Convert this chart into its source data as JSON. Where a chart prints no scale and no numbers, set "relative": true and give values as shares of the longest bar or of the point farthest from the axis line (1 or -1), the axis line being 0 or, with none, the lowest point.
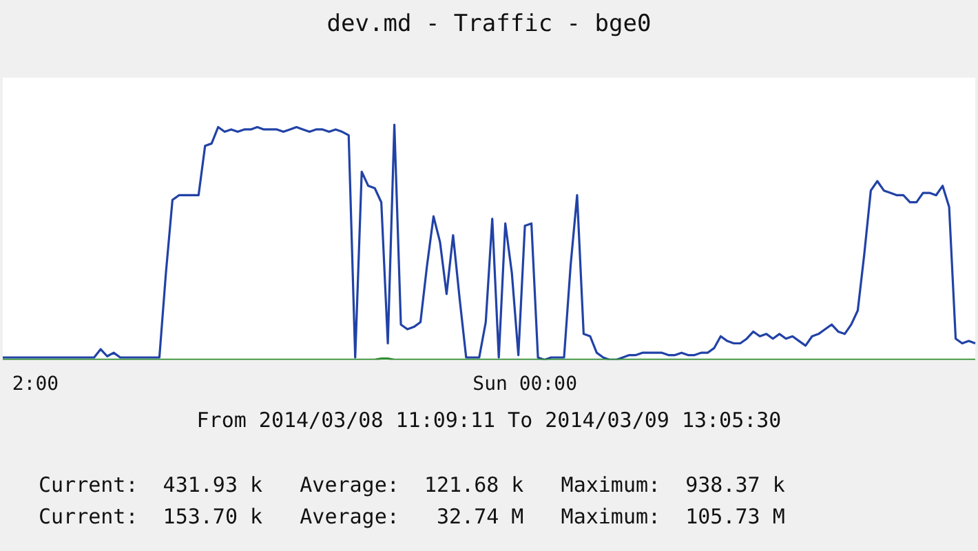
{
  "chart_data": {
    "type": "line",
    "title": "dev.md - Traffic - bge0",
    "relative": true,
    "legend": false,
    "marker": "none",
    "categories": [
      null,
      null,
      null,
      null,
      null,
      "2:00",
      null,
      null,
      null,
      null,
      null,
      null,
      null,
      null,
      null,
      null,
      null,
      null,
      null,
      null,
      null,
      null,
      null,
      null,
      null,
      null,
      null,
      null,
      null,
      null,
      null,
      null,
      null,
      null,
      null,
      null,
      null,
      null,
      null,
      null,
      null,
      null,
      null,
      null,
      null,
      null,
      null,
      null,
      null,
      null,
      null,
      null,
      null,
      null,
      null,
      null,
      null,
      null,
      null,
      null,
      null,
      null,
      null,
      null,
      null,
      null,
      null,
      null,
      null,
      null,
      null,
      null,
      null,
      null,
      null,
      null,
      null,
      null,
      null,
      null,
      "Sun 00:00",
      null,
      null,
      null,
      null,
      null,
      null,
      null,
      null,
      null,
      null,
      null,
      null,
      null,
      null,
      null,
      null,
      null,
      null,
      null,
      null,
      null,
      null,
      null,
      null,
      null,
      null,
      null,
      null,
      null,
      null,
      null,
      null,
      null,
      null,
      null,
      null,
      null,
      null,
      null,
      null,
      null,
      null,
      null,
      null,
      null,
      null,
      null,
      null,
      null,
      null,
      null,
      null,
      null,
      null,
      null,
      null,
      null,
      null,
      null,
      null,
      null,
      null,
      null,
      null,
      null,
      null,
      null,
      null,
      null
    ],
    "series": [
      {
        "color": "#2f8a2f",
        "values": [
          0,
          0,
          0,
          0,
          0,
          0,
          0,
          0,
          0,
          0,
          0,
          0,
          0,
          0,
          0,
          0,
          0,
          0,
          0,
          0,
          0,
          0,
          0,
          0,
          0,
          0,
          0,
          0,
          0,
          0,
          0,
          0,
          0,
          0,
          0,
          0,
          0,
          0,
          0,
          0,
          0,
          0,
          0,
          0,
          0,
          0,
          0,
          0,
          0,
          0,
          0,
          0,
          0,
          0,
          0,
          0,
          0,
          0,
          0.005,
          0.005,
          0,
          0,
          0,
          0,
          0,
          0,
          0,
          0,
          0,
          0,
          0,
          0,
          0,
          0,
          0,
          0,
          0,
          0,
          0,
          0,
          0,
          0,
          0,
          0,
          0,
          0,
          0,
          0,
          0,
          0,
          0,
          0,
          0,
          0,
          0,
          0,
          0,
          0,
          0,
          0,
          0,
          0,
          0,
          0,
          0,
          0,
          0,
          0,
          0,
          0,
          0,
          0,
          0,
          0,
          0,
          0,
          0,
          0,
          0,
          0,
          0,
          0,
          0,
          0,
          0,
          0,
          0,
          0,
          0,
          0,
          0,
          0,
          0,
          0,
          0,
          0,
          0,
          0,
          0,
          0,
          0,
          0,
          0,
          0,
          0,
          0,
          0,
          0,
          0,
          0
        ]
      },
      {
        "color": "#2142a6",
        "values": [
          0.01,
          0.01,
          0.01,
          0.01,
          0.01,
          0.01,
          0.01,
          0.01,
          0.01,
          0.01,
          0.01,
          0.01,
          0.01,
          0.01,
          0.01,
          0.045,
          0.015,
          0.03,
          0.01,
          0.01,
          0.01,
          0.01,
          0.01,
          0.01,
          0.01,
          0.37,
          0.68,
          0.7,
          0.7,
          0.7,
          0.7,
          0.91,
          0.92,
          0.99,
          0.97,
          0.98,
          0.97,
          0.98,
          0.98,
          0.99,
          0.98,
          0.98,
          0.98,
          0.97,
          0.98,
          0.99,
          0.98,
          0.97,
          0.98,
          0.98,
          0.97,
          0.98,
          0.97,
          0.955,
          0.01,
          0.8,
          0.74,
          0.73,
          0.67,
          0.07,
          1,
          0.15,
          0.13,
          0.14,
          0.16,
          0.4,
          0.61,
          0.5,
          0.28,
          0.53,
          0.26,
          0.01,
          0.01,
          0.01,
          0.16,
          0.6,
          0.01,
          0.58,
          0.37,
          0.02,
          0.57,
          0.58,
          0.01,
          0,
          0.01,
          0.01,
          0.01,
          0.4,
          0.7,
          0.11,
          0.1,
          0.03,
          0.01,
          0,
          0,
          0.01,
          0.02,
          0.02,
          0.03,
          0.03,
          0.03,
          0.03,
          0.02,
          0.02,
          0.03,
          0.02,
          0.02,
          0.03,
          0.03,
          0.05,
          0.1,
          0.08,
          0.07,
          0.07,
          0.09,
          0.12,
          0.1,
          0.11,
          0.09,
          0.11,
          0.09,
          0.1,
          0.08,
          0.06,
          0.1,
          0.11,
          0.13,
          0.15,
          0.12,
          0.11,
          0.15,
          0.21,
          0.45,
          0.72,
          0.76,
          0.72,
          0.71,
          0.7,
          0.7,
          0.67,
          0.67,
          0.71,
          0.71,
          0.7,
          0.74,
          0.65,
          0.09,
          0.07,
          0.08,
          0.07
        ]
      }
    ],
    "annotations": [
      "From 2014/03/08 11:09:11 To 2014/03/09 13:05:30",
      "Current:  431.93 k   Average:  121.68 k   Maximum:  938.37 k",
      "Current:  153.70 k   Average:   32.74 M   Maximum:  105.73 M"
    ]
  }
}
